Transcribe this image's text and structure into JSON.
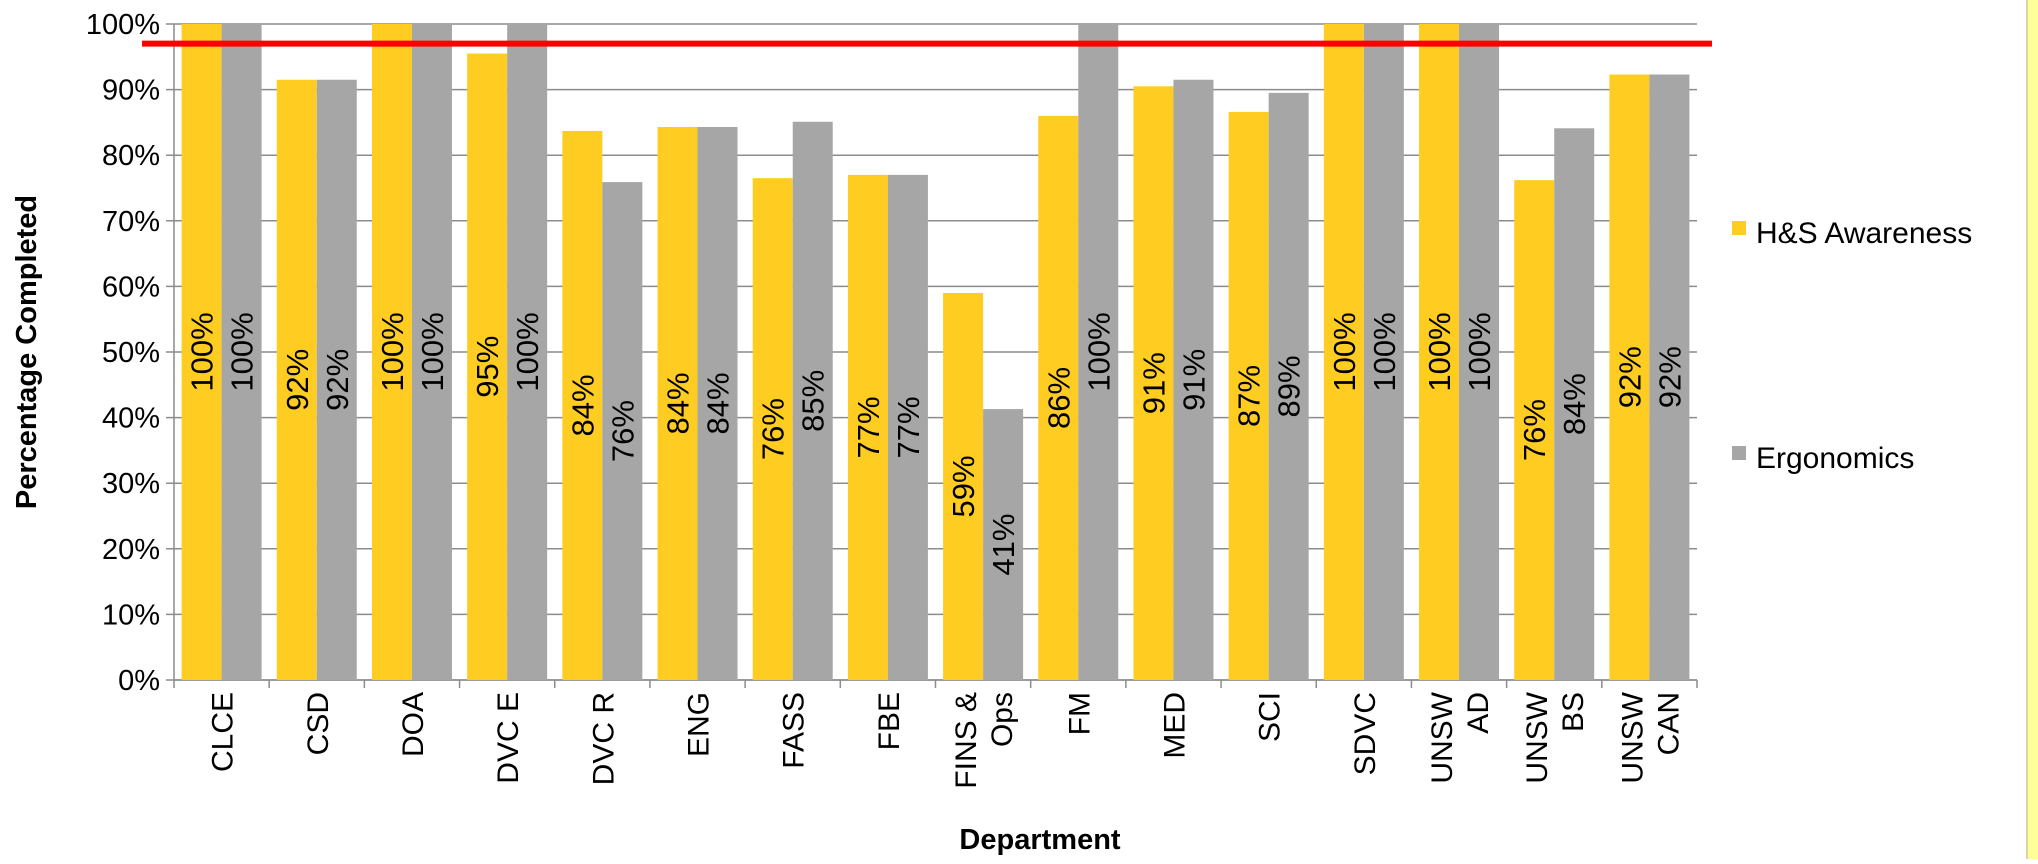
{
  "chart_data": {
    "type": "bar",
    "title": "",
    "xlabel": "Department",
    "ylabel": "Percentage Completed",
    "ylim": [
      0,
      100
    ],
    "yticks": [
      0,
      10,
      20,
      30,
      40,
      50,
      60,
      70,
      80,
      90,
      100
    ],
    "ytick_suffix": "%",
    "grid": true,
    "legend_position": "right",
    "categories": [
      [
        "CLCE"
      ],
      [
        "CSD"
      ],
      [
        "DOA"
      ],
      [
        "DVC E"
      ],
      [
        "DVC R"
      ],
      [
        "ENG"
      ],
      [
        "FASS"
      ],
      [
        "FBE"
      ],
      [
        "FINS &",
        "Ops"
      ],
      [
        "FM"
      ],
      [
        "MED"
      ],
      [
        "SCI"
      ],
      [
        "SDVC"
      ],
      [
        "UNSW",
        "AD"
      ],
      [
        "UNSW",
        "BS"
      ],
      [
        "UNSW",
        "CAN"
      ]
    ],
    "series": [
      {
        "name": "H&S Awareness",
        "color": "#FFCC22",
        "values": [
          100,
          92,
          100,
          95,
          84,
          84,
          76,
          77,
          59,
          86,
          91,
          87,
          100,
          100,
          76,
          92
        ],
        "labels": [
          "100%",
          "92%",
          "100%",
          "95%",
          "84%",
          "84%",
          "76%",
          "77%",
          "59%",
          "86%",
          "91%",
          "87%",
          "100%",
          "100%",
          "76%",
          "92%"
        ],
        "bar_values": [
          100,
          91.5,
          100,
          95.5,
          83.7,
          84.3,
          76.5,
          77,
          59,
          86,
          90.5,
          86.6,
          100,
          100,
          76.2,
          92.3
        ]
      },
      {
        "name": "Ergonomics",
        "color": "#A6A6A6",
        "values": [
          100,
          92,
          100,
          100,
          76,
          84,
          85,
          77,
          41,
          100,
          91,
          89,
          100,
          100,
          84,
          92
        ],
        "labels": [
          "100%",
          "92%",
          "100%",
          "100%",
          "76%",
          "84%",
          "85%",
          "77%",
          "41%",
          "100%",
          "91%",
          "89%",
          "100%",
          "100%",
          "84%",
          "92%"
        ],
        "bar_values": [
          100,
          91.5,
          100,
          100,
          75.9,
          84.3,
          85.1,
          77,
          41.3,
          100,
          91.5,
          89.5,
          100,
          100,
          84.1,
          92.3
        ]
      }
    ],
    "target_line": {
      "value": 97,
      "color": "#FF0000"
    },
    "frame_color": "#FFFF99"
  }
}
